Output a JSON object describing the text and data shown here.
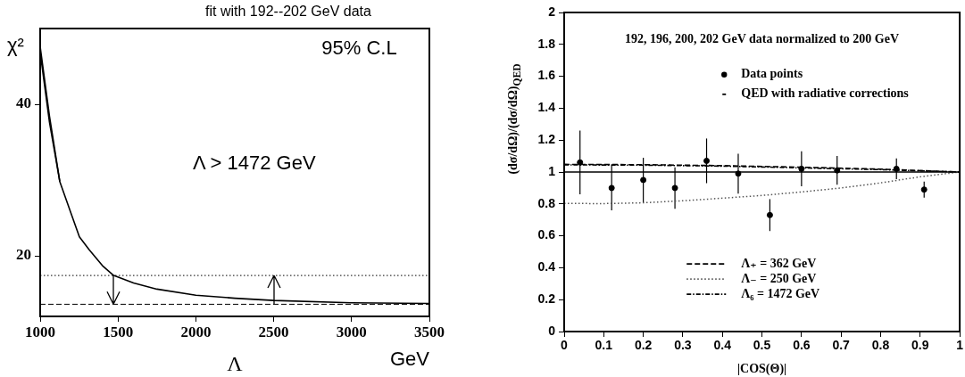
{
  "chart_data": [
    {
      "type": "line",
      "title": "fit with 192--202 GeV data",
      "xlabel": "Λ",
      "ylabel": "χ²",
      "annotations": [
        "95% C.L",
        "Λ > 1472 GeV",
        "GeV"
      ],
      "series": [
        {
          "color": "#000000",
          "x": [
            1000,
            1060,
            1126,
            1200,
            1252,
            1315,
            1400,
            1472,
            1600,
            1750,
            2000,
            2250,
            2500,
            3000,
            3500
          ],
          "values": [
            46.9,
            37.6,
            29.8,
            25.5,
            22.5,
            20.8,
            18.7,
            17.4,
            16.4,
            15.6,
            14.8,
            14.4,
            14.1,
            13.8,
            13.7
          ]
        },
        {
          "color": "#000000",
          "x": [
            1000,
            1060,
            1126
          ],
          "values": [
            47.6,
            38.4,
            29.8
          ]
        }
      ],
      "xlim": [
        1000,
        3500
      ],
      "ylim": [
        12,
        50
      ],
      "xticks": [
        1000,
        1500,
        2000,
        2500,
        3000,
        3500
      ],
      "yticks": [
        20,
        40
      ],
      "ref_lines": [
        {
          "axis": "y",
          "value": 17.4,
          "line_style": "dotted",
          "color": "#000000"
        },
        {
          "axis": "y",
          "value": 13.6,
          "line_style": "dashed",
          "color": "#000000"
        }
      ],
      "grid": false,
      "legend": false,
      "marker": "none",
      "line_style": "solid"
    },
    {
      "type": "line",
      "title": "192, 196, 200, 202 GeV data normalized to 200 GeV",
      "xlabel": "|COS(Θ)|",
      "ylabel": "(dσ/dΩ)/(dσ/dΩ)$_{QED}$",
      "series": [
        {
          "name": "Data points",
          "type": "scatter",
          "marker": "circle",
          "color": "#000000",
          "x": [
            0.04,
            0.12,
            0.2,
            0.28,
            0.36,
            0.44,
            0.52,
            0.6,
            0.69,
            0.84,
            0.91
          ],
          "values": [
            1.06,
            0.9,
            0.95,
            0.9,
            1.07,
            0.99,
            0.73,
            1.02,
            1.01,
            1.02,
            0.89
          ],
          "errors": [
            0.2,
            0.14,
            0.14,
            0.13,
            0.14,
            0.125,
            0.1,
            0.11,
            0.09,
            0.065,
            0.05
          ]
        },
        {
          "name": "QED with radiative corrections",
          "type": "line",
          "line_style": "solid",
          "color": "#000000",
          "x": [
            0,
            1
          ],
          "values": [
            1,
            1
          ]
        },
        {
          "name": "Λ₊ = 362 GeV",
          "type": "line",
          "line_style": "dashed",
          "color": "#000000",
          "x": [
            0,
            0.2,
            0.4,
            0.6,
            0.8,
            1
          ],
          "values": [
            1.048,
            1.046,
            1.04,
            1.03,
            1.018,
            1
          ]
        },
        {
          "name": "Λ₋ = 250 GeV",
          "type": "line",
          "line_style": "dotted",
          "color": "#555555",
          "x": [
            0,
            0.1,
            0.2,
            0.3,
            0.4,
            0.5,
            0.6,
            0.7,
            0.8,
            0.9,
            1
          ],
          "values": [
            0.803,
            0.802,
            0.807,
            0.82,
            0.836,
            0.853,
            0.875,
            0.9,
            0.932,
            0.97,
            1
          ]
        },
        {
          "name": "Λ₆ = 1472 GeV",
          "type": "line",
          "line_style": "dashdot",
          "color": "#000000",
          "x": [
            0,
            0.2,
            0.4,
            0.6,
            0.8,
            1
          ],
          "values": [
            1.045,
            1.043,
            1.037,
            1.026,
            1.015,
            1
          ]
        }
      ],
      "xlim": [
        0,
        1
      ],
      "ylim": [
        0,
        2
      ],
      "xticks": [
        0,
        0.1,
        0.2,
        0.3,
        0.4,
        0.5,
        0.6,
        0.7,
        0.8,
        0.9,
        1
      ],
      "yticks": [
        0,
        0.2,
        0.4,
        0.6,
        0.8,
        1,
        1.2,
        1.4,
        1.6,
        1.8,
        2
      ],
      "grid": false,
      "legend": "right",
      "marker": "none"
    }
  ]
}
